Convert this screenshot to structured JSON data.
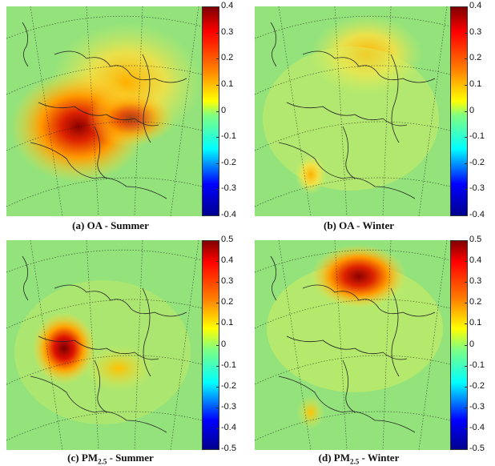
{
  "panels": [
    {
      "id": "a",
      "caption": "(a) OA - Summer",
      "caption_html": "(a) OA - Summer",
      "colorbar": {
        "min": -0.4,
        "max": 0.4,
        "ticks": [
          "0.4",
          "0.3",
          "0.2",
          "0.1",
          "0",
          "-0.1",
          "-0.2",
          "-0.3",
          "-0.4"
        ]
      },
      "hotspots": [
        {
          "name": "central-europe-high",
          "level": 0.38
        },
        {
          "name": "italy-balkans",
          "level": 0.25
        },
        {
          "name": "eastern-europe",
          "level": 0.18
        }
      ]
    },
    {
      "id": "b",
      "caption": "(b) OA - Winter",
      "colorbar": {
        "min": -0.4,
        "max": 0.4,
        "ticks": [
          "0.4",
          "0.3",
          "0.2",
          "0.1",
          "0",
          "-0.1",
          "-0.2",
          "-0.3",
          "-0.4"
        ]
      },
      "hotspots": [
        {
          "name": "scandinavia",
          "level": 0.2
        },
        {
          "name": "iberia",
          "level": 0.15
        }
      ]
    },
    {
      "id": "c",
      "caption": "(c) PM2.5 - Summer",
      "colorbar": {
        "min": -0.5,
        "max": 0.5,
        "ticks": [
          "0.5",
          "0.4",
          "0.3",
          "0.2",
          "0.1",
          "0",
          "-0.1",
          "-0.2",
          "-0.3",
          "-0.4",
          "-0.5"
        ]
      },
      "hotspots": [
        {
          "name": "france-benelux",
          "level": 0.48
        },
        {
          "name": "italy",
          "level": 0.2
        }
      ]
    },
    {
      "id": "d",
      "caption": "(d) PM2.5 - Winter",
      "colorbar": {
        "min": -0.5,
        "max": 0.5,
        "ticks": [
          "0.5",
          "0.4",
          "0.3",
          "0.2",
          "0.1",
          "0",
          "-0.1",
          "-0.2",
          "-0.3",
          "-0.4",
          "-0.5"
        ]
      },
      "hotspots": [
        {
          "name": "scandinavia-russia",
          "level": 0.42
        },
        {
          "name": "iberia",
          "level": 0.12
        }
      ]
    }
  ],
  "colors": {
    "background_field": "#8ee07a",
    "colormap": [
      "#00008f",
      "#0000ff",
      "#00ffff",
      "#80ff80",
      "#ffff00",
      "#ff8000",
      "#ff0000",
      "#800000"
    ]
  }
}
